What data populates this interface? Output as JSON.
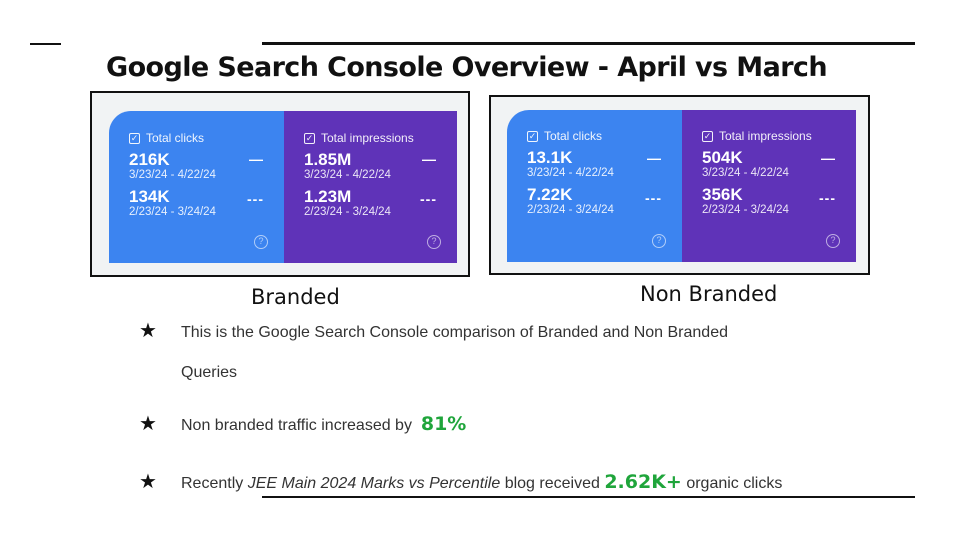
{
  "title": "Google Search Console Overview - April vs March",
  "panels": [
    {
      "caption": "Branded",
      "clicks": {
        "label": "Total clicks",
        "current": "216K",
        "current_range": "3/23/24 - 4/22/24",
        "previous": "134K",
        "previous_range": "2/23/24 - 3/24/24"
      },
      "impressions": {
        "label": "Total impressions",
        "current": "1.85M",
        "current_range": "3/23/24 - 4/22/24",
        "previous": "1.23M",
        "previous_range": "2/23/24 - 3/24/24"
      }
    },
    {
      "caption": "Non Branded",
      "clicks": {
        "label": "Total clicks",
        "current": "13.1K",
        "current_range": "3/23/24 - 4/22/24",
        "previous": "7.22K",
        "previous_range": "2/23/24 - 3/24/24"
      },
      "impressions": {
        "label": "Total impressions",
        "current": "504K",
        "current_range": "3/23/24 - 4/22/24",
        "previous": "356K",
        "previous_range": "2/23/24 - 3/24/24"
      }
    }
  ],
  "bullets": {
    "b1_line1": "This is the Google Search Console comparison of Branded and Non Branded",
    "b1_line2": "Queries",
    "b2_text": "Non branded traffic increased by",
    "b2_highlight": "81%",
    "b3_pre": "Recently",
    "b3_italic": "JEE Main 2024 Marks vs Percentile",
    "b3_mid": "blog received",
    "b3_highlight": "2.62K+",
    "b3_post": "organic clicks"
  },
  "colors": {
    "clicks": "#3c84f0",
    "impressions": "#5f33b8",
    "highlight": "#1fa53b"
  }
}
